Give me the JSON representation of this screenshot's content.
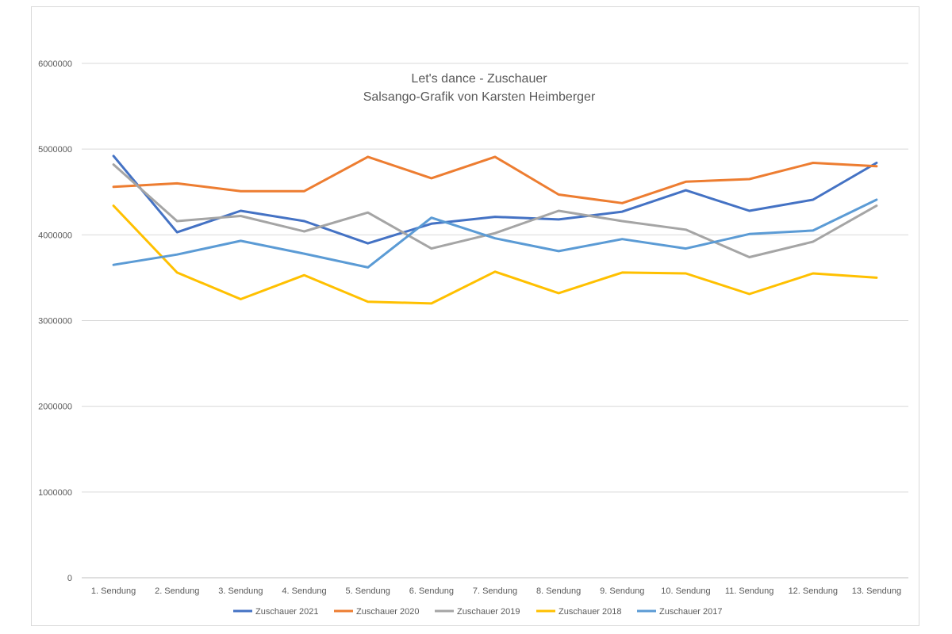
{
  "chart_data": {
    "type": "line",
    "title": "Let's dance - Zuschauer",
    "subtitle": "Salsango-Grafik von Karsten Heimberger",
    "xlabel": "",
    "ylabel": "",
    "ylim": [
      0,
      6000000
    ],
    "yticks": [
      "0",
      "1000000",
      "2000000",
      "3000000",
      "4000000",
      "5000000",
      "6000000"
    ],
    "grid": true,
    "legend_position": "bottom",
    "categories": [
      "1. Sendung",
      "2. Sendung",
      "3. Sendung",
      "4. Sendung",
      "5. Sendung",
      "6. Sendung",
      "7. Sendung",
      "8. Sendung",
      "9. Sendung",
      "10. Sendung",
      "11. Sendung",
      "12. Sendung",
      "13. Sendung"
    ],
    "series": [
      {
        "name": "Zuschauer 2021",
        "color": "#4472c4",
        "values": [
          4920000,
          4030000,
          4280000,
          4160000,
          3900000,
          4130000,
          4210000,
          4180000,
          4270000,
          4520000,
          4280000,
          4410000,
          4840000
        ]
      },
      {
        "name": "Zuschauer 2020",
        "color": "#ed7d31",
        "values": [
          4560000,
          4600000,
          4510000,
          4510000,
          4910000,
          4660000,
          4910000,
          4470000,
          4370000,
          4620000,
          4650000,
          4840000,
          4800000
        ]
      },
      {
        "name": "Zuschauer 2019",
        "color": "#a5a5a5",
        "values": [
          4820000,
          4160000,
          4220000,
          4040000,
          4260000,
          3840000,
          4020000,
          4280000,
          4160000,
          4060000,
          3740000,
          3920000,
          4340000
        ]
      },
      {
        "name": "Zuschauer 2018",
        "color": "#ffc000",
        "values": [
          4340000,
          3560000,
          3250000,
          3530000,
          3220000,
          3200000,
          3570000,
          3320000,
          3560000,
          3550000,
          3310000,
          3550000,
          3500000
        ]
      },
      {
        "name": "Zuschauer 2017",
        "color": "#5b9bd5",
        "values": [
          3650000,
          3770000,
          3930000,
          3780000,
          3620000,
          4200000,
          3960000,
          3810000,
          3950000,
          3840000,
          4010000,
          4050000,
          4410000
        ]
      }
    ]
  }
}
